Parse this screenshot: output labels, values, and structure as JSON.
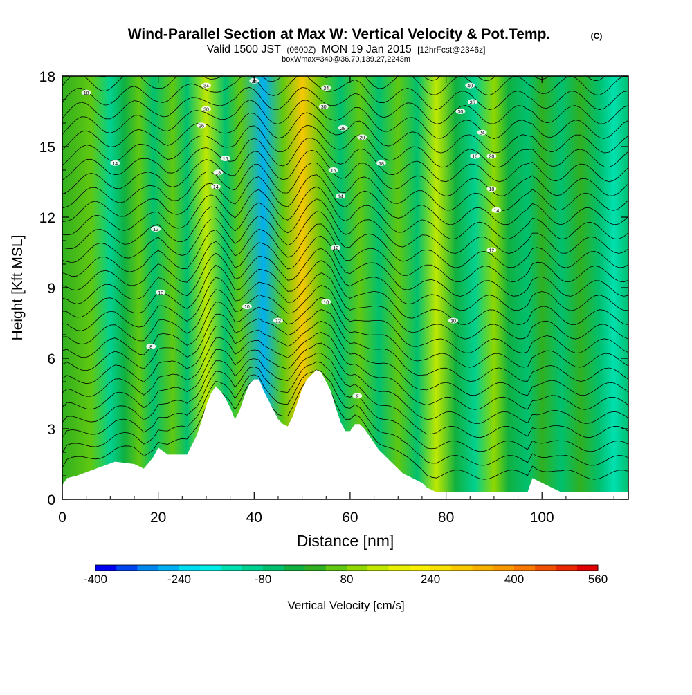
{
  "header": {
    "title_main": "Wind-Parallel Section at Max W: Vertical Velocity & Pot.Temp.",
    "title_copyright": "(C)",
    "valid_prefix": "Valid 1500 JST",
    "valid_utc": "(0600Z)",
    "valid_date": "MON 19 Jan 2015",
    "valid_forecast": "[12hrFcst@2346z]",
    "boxinfo": "boxWmax=340@36.70,139.27,2243m"
  },
  "chart_data": {
    "type": "heatmap",
    "xlabel": "Distance [nm]",
    "ylabel": "Height [Kft MSL]",
    "xlim": [
      0,
      118
    ],
    "ylim": [
      0,
      18
    ],
    "x_ticks": [
      0,
      20,
      40,
      60,
      80,
      100
    ],
    "y_ticks": [
      0,
      3,
      6,
      9,
      12,
      15,
      18
    ],
    "terrain": {
      "x": [
        0,
        1,
        3,
        7,
        11,
        15,
        17,
        19,
        20,
        22,
        24,
        26,
        27,
        28,
        29,
        30,
        31,
        32,
        33,
        34,
        35,
        36,
        37,
        38,
        39,
        40,
        41,
        42,
        43,
        44,
        45,
        46,
        47,
        48,
        49,
        50,
        51,
        52,
        53,
        54,
        55,
        56,
        57,
        58,
        59,
        60,
        61,
        62,
        63,
        64,
        65,
        66,
        67,
        68,
        69,
        70,
        71,
        72,
        73,
        74,
        75,
        76,
        77,
        78,
        80,
        84,
        88,
        92,
        97,
        98,
        101,
        104,
        106,
        110,
        114,
        118
      ],
      "height": [
        0.6,
        0.9,
        1.0,
        1.3,
        1.6,
        1.5,
        1.3,
        1.8,
        2.2,
        1.9,
        1.9,
        1.9,
        2.3,
        2.7,
        3.3,
        4.0,
        4.5,
        4.8,
        4.6,
        4.3,
        3.9,
        3.4,
        3.8,
        4.4,
        4.9,
        5.1,
        5.1,
        4.6,
        4.2,
        3.8,
        3.4,
        3.2,
        3.1,
        3.5,
        4.1,
        4.7,
        5.1,
        5.3,
        5.5,
        5.4,
        5.0,
        4.6,
        3.9,
        3.3,
        2.9,
        2.9,
        3.2,
        3.2,
        3.0,
        2.7,
        2.4,
        2.1,
        1.9,
        1.7,
        1.5,
        1.3,
        1.1,
        1.0,
        0.9,
        0.8,
        0.7,
        0.5,
        0.4,
        0.3,
        0.3,
        0.3,
        0.3,
        0.3,
        0.3,
        0.9,
        0.6,
        0.3,
        0.3,
        0.3,
        0.3,
        0.3
      ]
    },
    "vertical_velocity_bands": [
      {
        "x": 0,
        "value": 20
      },
      {
        "x": 6,
        "value": 40
      },
      {
        "x": 10,
        "value": -120
      },
      {
        "x": 13,
        "value": -40
      },
      {
        "x": 16,
        "value": 60
      },
      {
        "x": 19,
        "value": -60
      },
      {
        "x": 23,
        "value": 70
      },
      {
        "x": 26,
        "value": -80
      },
      {
        "x": 30,
        "value": 120
      },
      {
        "x": 34,
        "value": -60
      },
      {
        "x": 37,
        "value": 40
      },
      {
        "x": 42,
        "value": -280
      },
      {
        "x": 46,
        "value": 60
      },
      {
        "x": 50,
        "value": 300
      },
      {
        "x": 54,
        "value": 60
      },
      {
        "x": 58,
        "value": -80
      },
      {
        "x": 62,
        "value": 40
      },
      {
        "x": 66,
        "value": -80
      },
      {
        "x": 70,
        "value": 40
      },
      {
        "x": 74,
        "value": -60
      },
      {
        "x": 78,
        "value": 120
      },
      {
        "x": 82,
        "value": -40
      },
      {
        "x": 86,
        "value": -100
      },
      {
        "x": 90,
        "value": 80
      },
      {
        "x": 93,
        "value": -20
      },
      {
        "x": 97,
        "value": -80
      },
      {
        "x": 100,
        "value": 20
      },
      {
        "x": 104,
        "value": -60
      },
      {
        "x": 108,
        "value": 20
      },
      {
        "x": 112,
        "value": -80
      },
      {
        "x": 115,
        "value": -140
      },
      {
        "x": 118,
        "value": -60
      }
    ],
    "isentrope_labels": [
      {
        "text": "18",
        "x": 5,
        "y": 17.3
      },
      {
        "text": "14",
        "x": 11,
        "y": 14.3
      },
      {
        "text": "12",
        "x": 19.5,
        "y": 11.5
      },
      {
        "text": "10",
        "x": 20.5,
        "y": 8.8
      },
      {
        "text": "8",
        "x": 18.5,
        "y": 6.5
      },
      {
        "text": "34",
        "x": 30,
        "y": 17.6
      },
      {
        "text": "30",
        "x": 30,
        "y": 16.6
      },
      {
        "text": "26",
        "x": 29,
        "y": 15.9
      },
      {
        "text": "16",
        "x": 34,
        "y": 14.5
      },
      {
        "text": "18",
        "x": 32.5,
        "y": 13.9
      },
      {
        "text": "14",
        "x": 32,
        "y": 13.3
      },
      {
        "text": "10",
        "x": 38.5,
        "y": 8.2
      },
      {
        "text": "12",
        "x": 45,
        "y": 7.6
      },
      {
        "text": "10",
        "x": 55,
        "y": 8.4
      },
      {
        "text": "34",
        "x": 40,
        "y": 17.8
      },
      {
        "text": "34",
        "x": 55,
        "y": 17.5
      },
      {
        "text": "30",
        "x": 54.5,
        "y": 16.7
      },
      {
        "text": "28",
        "x": 58.5,
        "y": 15.8
      },
      {
        "text": "20",
        "x": 62.5,
        "y": 15.4
      },
      {
        "text": "18",
        "x": 66.5,
        "y": 14.3
      },
      {
        "text": "16",
        "x": 56.5,
        "y": 14.0
      },
      {
        "text": "14",
        "x": 58,
        "y": 12.9
      },
      {
        "text": "12",
        "x": 57,
        "y": 10.7
      },
      {
        "text": "9",
        "x": 61.5,
        "y": 4.4
      },
      {
        "text": "10",
        "x": 81.5,
        "y": 7.6
      },
      {
        "text": "40",
        "x": 85,
        "y": 17.6
      },
      {
        "text": "36",
        "x": 85.5,
        "y": 16.9
      },
      {
        "text": "30",
        "x": 83,
        "y": 16.5
      },
      {
        "text": "24",
        "x": 87.5,
        "y": 15.6
      },
      {
        "text": "16",
        "x": 86,
        "y": 14.6
      },
      {
        "text": "20",
        "x": 89.5,
        "y": 14.6
      },
      {
        "text": "18",
        "x": 89.5,
        "y": 13.2
      },
      {
        "text": "14",
        "x": 90.5,
        "y": 12.3
      },
      {
        "text": "12",
        "x": 89.5,
        "y": 10.6
      }
    ]
  },
  "colorbar": {
    "label": "Vertical Velocity [cm/s]",
    "tick_labels": [
      "-400",
      "-240",
      "-80",
      "80",
      "240",
      "400",
      "560"
    ],
    "tick_values": [
      -400,
      -240,
      -80,
      80,
      240,
      400,
      560
    ],
    "range": [
      -400,
      560
    ],
    "step": 40,
    "colors": [
      "#0000f0",
      "#0044f0",
      "#0088f0",
      "#00b0f0",
      "#00dcf0",
      "#00f0e8",
      "#00e0b0",
      "#00d090",
      "#00c070",
      "#10b040",
      "#30b020",
      "#60c810",
      "#90d800",
      "#c0e800",
      "#e8f000",
      "#f8f000",
      "#f8e000",
      "#f8c800",
      "#f8b000",
      "#f89800",
      "#f87800",
      "#f05000",
      "#e82800",
      "#e00000",
      "#c80018",
      "#b0003a",
      "#98005a",
      "#800070",
      "#6a0080",
      "#50008c"
    ]
  }
}
